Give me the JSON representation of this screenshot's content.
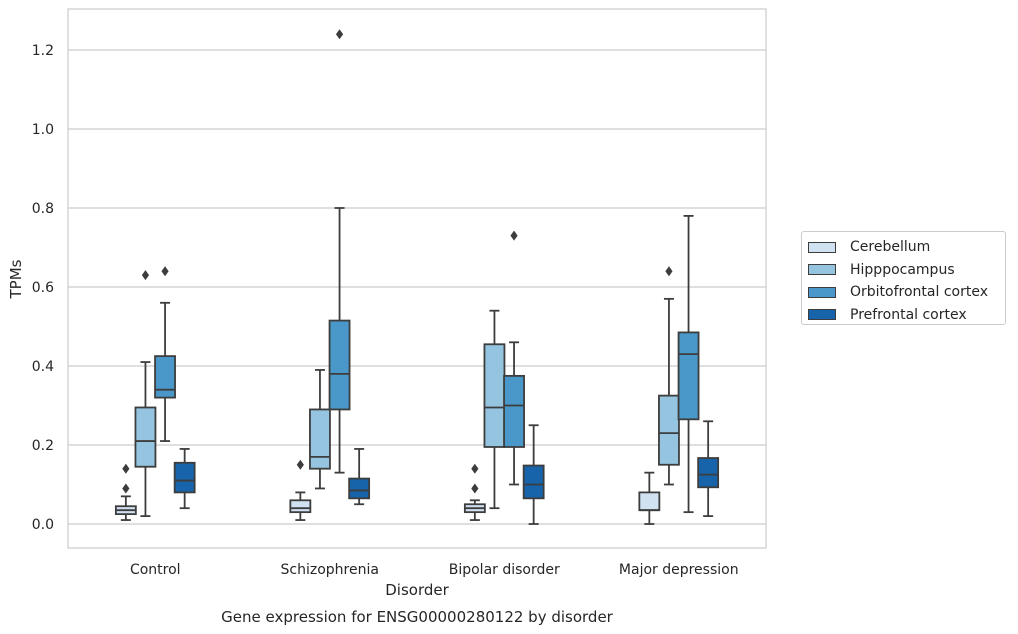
{
  "chart_data": {
    "type": "box",
    "title": "",
    "caption": "Gene expression for ENSG00000280122 by disorder",
    "xlabel": "Disorder",
    "ylabel": "TPMs",
    "ylim": [
      -0.06,
      1.3
    ],
    "yticks": [
      "0.0",
      "0.2",
      "0.4",
      "0.6",
      "0.8",
      "1.0",
      "1.2"
    ],
    "grid": true,
    "legend_position": "right",
    "categories": [
      "Control",
      "Schizophrenia",
      "Bipolar disorder",
      "Major depression"
    ],
    "series": [
      {
        "name": "Cerebellum",
        "color": "#d0e1f2",
        "boxes": [
          {
            "min": 0.01,
            "q1": 0.025,
            "median": 0.035,
            "q3": 0.045,
            "max": 0.07,
            "outliers": [
              0.09,
              0.14
            ]
          },
          {
            "min": 0.01,
            "q1": 0.03,
            "median": 0.04,
            "q3": 0.06,
            "max": 0.08,
            "outliers": [
              0.15
            ]
          },
          {
            "min": 0.01,
            "q1": 0.03,
            "median": 0.04,
            "q3": 0.05,
            "max": 0.06,
            "outliers": [
              0.09,
              0.14
            ]
          },
          {
            "min": 0.0,
            "q1": 0.035,
            "median": 0.035,
            "q3": 0.08,
            "max": 0.13,
            "outliers": []
          }
        ]
      },
      {
        "name": "Hipppocampus",
        "color": "#94c4df",
        "boxes": [
          {
            "min": 0.02,
            "q1": 0.145,
            "median": 0.21,
            "q3": 0.295,
            "max": 0.41,
            "outliers": [
              0.63
            ]
          },
          {
            "min": 0.09,
            "q1": 0.14,
            "median": 0.17,
            "q3": 0.29,
            "max": 0.39,
            "outliers": []
          },
          {
            "min": 0.04,
            "q1": 0.195,
            "median": 0.295,
            "q3": 0.455,
            "max": 0.54,
            "outliers": []
          },
          {
            "min": 0.1,
            "q1": 0.15,
            "median": 0.23,
            "q3": 0.325,
            "max": 0.57,
            "outliers": [
              0.64
            ]
          }
        ]
      },
      {
        "name": "Orbitofrontal cortex",
        "color": "#4a98c9",
        "boxes": [
          {
            "min": 0.21,
            "q1": 0.32,
            "median": 0.34,
            "q3": 0.425,
            "max": 0.56,
            "outliers": [
              0.64
            ]
          },
          {
            "min": 0.13,
            "q1": 0.29,
            "median": 0.38,
            "q3": 0.515,
            "max": 0.8,
            "outliers": [
              1.24
            ]
          },
          {
            "min": 0.1,
            "q1": 0.195,
            "median": 0.3,
            "q3": 0.375,
            "max": 0.46,
            "outliers": [
              0.73
            ]
          },
          {
            "min": 0.03,
            "q1": 0.265,
            "median": 0.43,
            "q3": 0.485,
            "max": 0.78,
            "outliers": []
          }
        ]
      },
      {
        "name": "Prefrontal cortex",
        "color": "#1764ab",
        "boxes": [
          {
            "min": 0.04,
            "q1": 0.08,
            "median": 0.11,
            "q3": 0.155,
            "max": 0.19,
            "outliers": []
          },
          {
            "min": 0.05,
            "q1": 0.065,
            "median": 0.085,
            "q3": 0.115,
            "max": 0.19,
            "outliers": []
          },
          {
            "min": 0.0,
            "q1": 0.065,
            "median": 0.1,
            "q3": 0.148,
            "max": 0.25,
            "outliers": []
          },
          {
            "min": 0.02,
            "q1": 0.093,
            "median": 0.125,
            "q3": 0.167,
            "max": 0.26,
            "outliers": []
          }
        ]
      }
    ]
  }
}
